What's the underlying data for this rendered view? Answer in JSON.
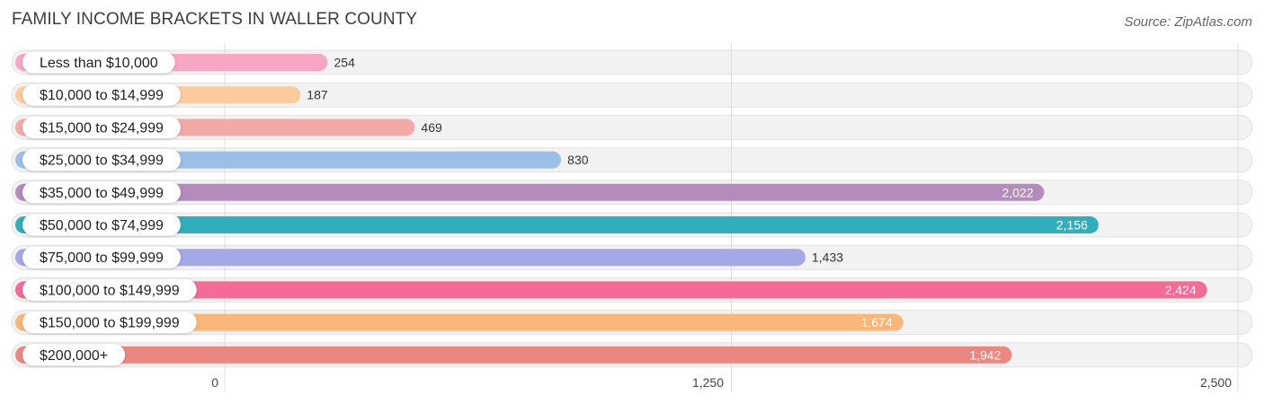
{
  "header": {
    "title": "FAMILY INCOME BRACKETS IN WALLER COUNTY",
    "source": "Source: ZipAtlas.com"
  },
  "chart_data": {
    "type": "bar",
    "orientation": "horizontal",
    "title": "FAMILY INCOME BRACKETS IN WALLER COUNTY",
    "categories": [
      "Less than $10,000",
      "$10,000 to $14,999",
      "$15,000 to $24,999",
      "$25,000 to $34,999",
      "$35,000 to $49,999",
      "$50,000 to $74,999",
      "$75,000 to $99,999",
      "$100,000 to $149,999",
      "$150,000 to $199,999",
      "$200,000+"
    ],
    "values": [
      254,
      187,
      469,
      830,
      2022,
      2156,
      1433,
      2424,
      1674,
      1942
    ],
    "value_labels": [
      "254",
      "187",
      "469",
      "830",
      "2,022",
      "2,156",
      "1,433",
      "2,424",
      "1,674",
      "1,942"
    ],
    "colors": [
      "#f7a6c4",
      "#fdcb9d",
      "#f2aaa9",
      "#9cbfe8",
      "#b48bbd",
      "#31aebb",
      "#a2a9e6",
      "#f46b97",
      "#fbb679",
      "#eb8781"
    ],
    "xlim": [
      0,
      2500
    ],
    "xticks": [
      0,
      1250,
      2500
    ],
    "xtick_labels": [
      "0",
      "1,250",
      "2,500"
    ],
    "grid": true,
    "xlabel": "",
    "ylabel": ""
  }
}
